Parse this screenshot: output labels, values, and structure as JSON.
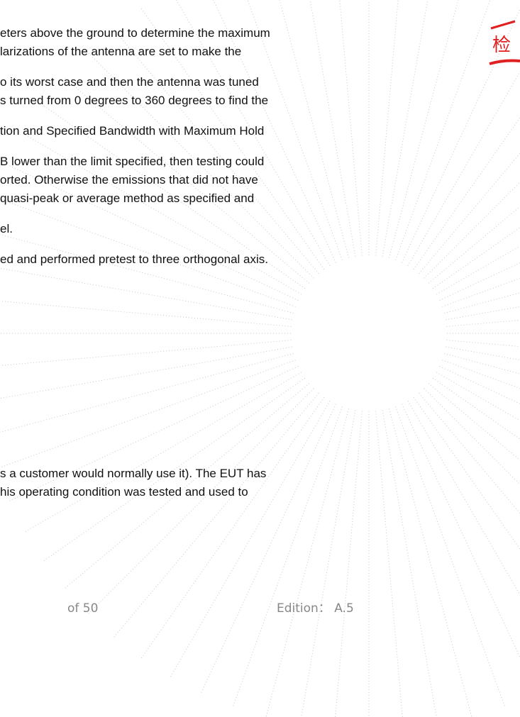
{
  "body": {
    "lines": [
      "eters above the ground to determine the maximum",
      "larizations of the antenna are set to make the",
      "o its worst case and then the antenna was tuned",
      "s turned from 0 degrees to 360 degrees to find the",
      "tion and Specified Bandwidth with Maximum Hold",
      "B lower than the limit specified, then testing could",
      "orted. Otherwise the emissions that did not have",
      "quasi-peak or average method as specified and",
      "el.",
      "ed and performed pretest to three orthogonal axis.",
      "s a customer would normally use it). The EUT has",
      "his operating condition was tested and used to"
    ]
  },
  "footer": {
    "page": "of 50",
    "edition": "Edition： A.5"
  },
  "stamp": {
    "text": "检"
  }
}
